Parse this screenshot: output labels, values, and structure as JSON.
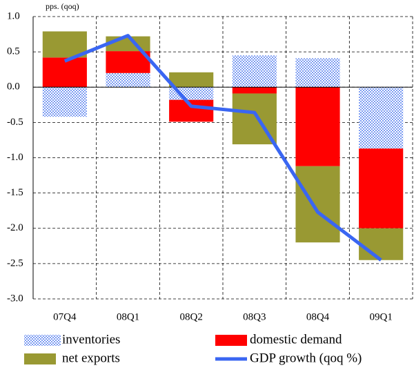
{
  "chart_data": {
    "type": "bar",
    "stacked": true,
    "y_axis_label": "pps. (qoq)",
    "categories": [
      "07Q4",
      "08Q1",
      "08Q2",
      "08Q3",
      "08Q4",
      "09Q1"
    ],
    "series": [
      {
        "name": "inventories",
        "type": "bar",
        "color": "#7c9cf2",
        "values": [
          -0.42,
          0.2,
          -0.18,
          0.45,
          0.41,
          -0.87
        ]
      },
      {
        "name": "domestic demand",
        "type": "bar",
        "color": "#ff0000",
        "values": [
          0.42,
          0.31,
          -0.31,
          -0.09,
          -1.12,
          -1.13
        ]
      },
      {
        "name": "net exports",
        "type": "bar",
        "color": "#999933",
        "values": [
          0.37,
          0.21,
          0.21,
          -0.72,
          -1.08,
          -0.45
        ]
      },
      {
        "name": "GDP growth (qoq %)",
        "type": "line",
        "color": "#3a66f2",
        "values": [
          0.37,
          0.73,
          -0.27,
          -0.36,
          -1.77,
          -2.45
        ]
      }
    ],
    "ylim": [
      -3,
      1
    ],
    "yticks": [
      {
        "value": 1,
        "label": "1.0"
      },
      0.5,
      {
        "value": 0,
        "label": "0.0"
      },
      -0.5,
      {
        "value": -1,
        "label": "-1.0"
      },
      -1.5,
      {
        "value": -2,
        "label": "-2.0"
      },
      -2.5,
      {
        "value": -3,
        "label": "-3.0"
      }
    ],
    "grid": true
  }
}
